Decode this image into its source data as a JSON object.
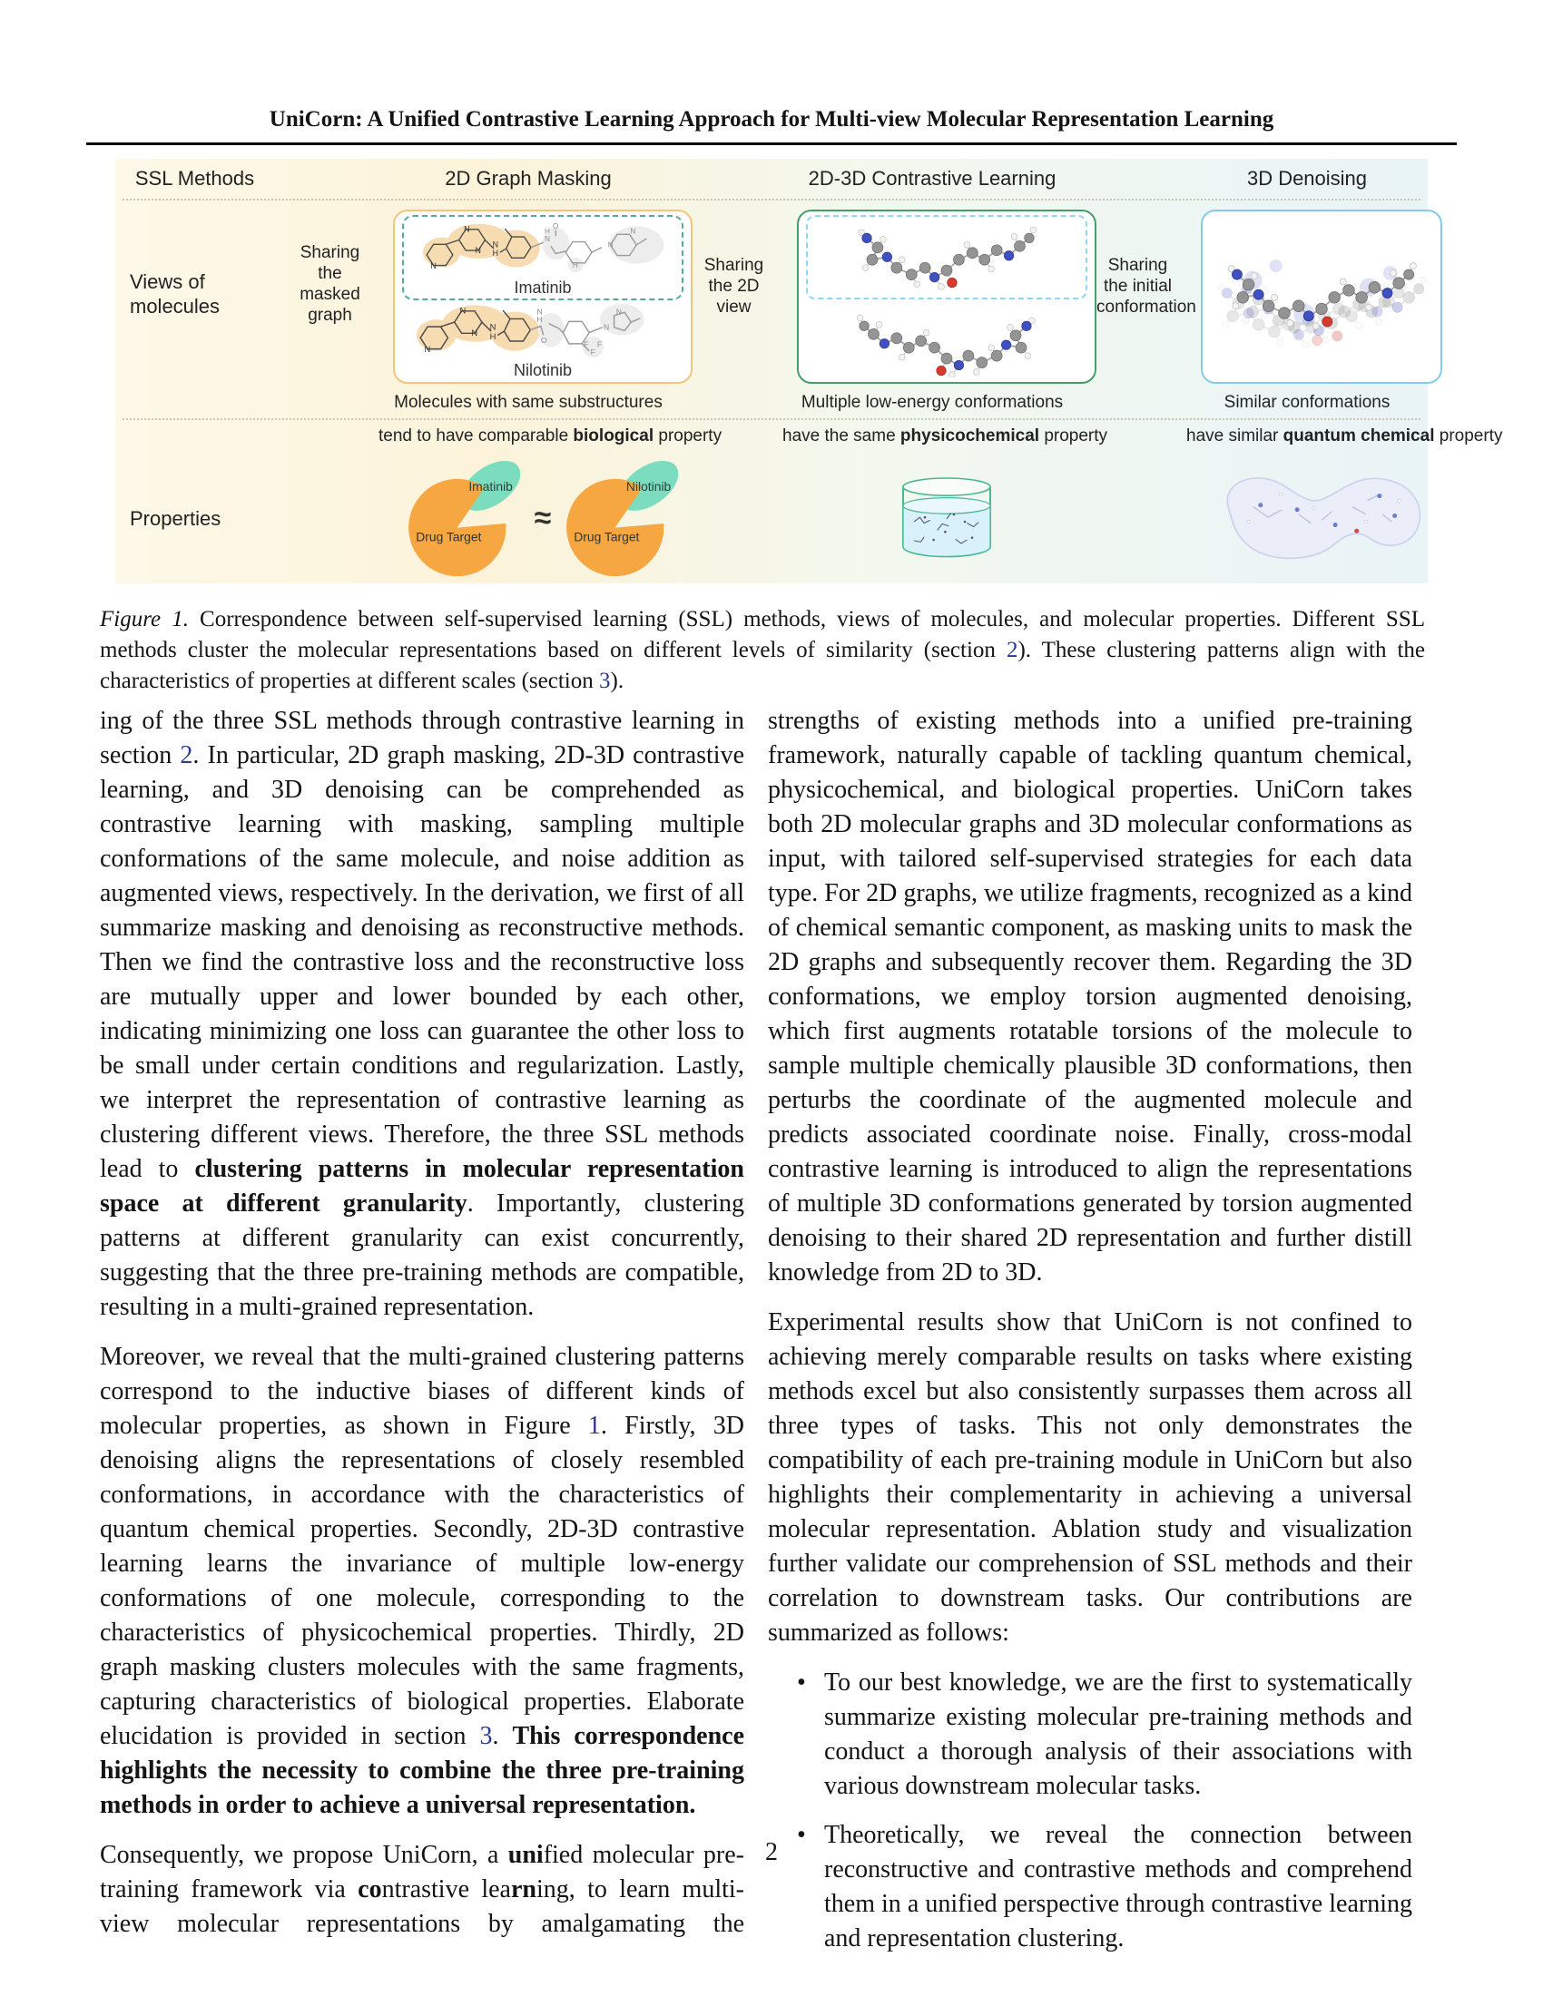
{
  "header": {
    "title": "UniCorn: A Unified Contrastive Learning Approach for Multi-view Molecular Representation Learning"
  },
  "figure": {
    "headers": {
      "methods": "SSL Methods",
      "masking": "2D Graph Masking",
      "contrastive": "2D-3D Contrastive Learning",
      "denoising": "3D Denoising"
    },
    "rows": {
      "views": "Views of molecules",
      "properties": "Properties"
    },
    "arrows": {
      "masked": "Sharing the masked graph",
      "view2d": "Sharing the 2D view",
      "init": "Sharing the initial conformation"
    },
    "molecules": {
      "imatinib": "Imatinib",
      "nilotinib": "Nilotinib"
    },
    "captions": {
      "col2": "Molecules with same substructures",
      "col3": "Multiple low-energy conformations",
      "col4": "Similar conformations"
    },
    "props": {
      "col2": [
        {
          "t": "tend to have comparable "
        },
        {
          "t": "biological",
          "s": "b"
        },
        {
          "t": " property"
        }
      ],
      "col3": [
        {
          "t": "have the same "
        },
        {
          "t": "physicochemical",
          "s": "b"
        },
        {
          "t": " property"
        }
      ],
      "col4": [
        {
          "t": "have similar "
        },
        {
          "t": "quantum chemical",
          "s": "b"
        },
        {
          "t": " property"
        }
      ]
    },
    "pac": {
      "target": "Drug Target",
      "approx": "≈"
    },
    "colors": {
      "masking_box": "#f2c579",
      "contrastive_box": "#43a06b",
      "denoising_box": "#85cbe8",
      "orange_arrow": "#f6b15c",
      "green_arrow": "#3aa169",
      "blue_arrow": "#7cc8e6",
      "pac_orange": "#f6a742",
      "petal_teal": "#7cdcbe",
      "link_blue": "#2b3990"
    }
  },
  "caption": [
    {
      "t": "Figure 1.",
      "s": "i"
    },
    {
      "t": "  Correspondence between self-supervised learning (SSL) methods, views of molecules, and molecular properties. Different SSL methods cluster the molecular representations based on different levels of similarity (section "
    },
    {
      "t": "2",
      "s": "link"
    },
    {
      "t": "). These clustering patterns align with the characteristics of properties at different scales (section "
    },
    {
      "t": "3",
      "s": "link"
    },
    {
      "t": ")."
    }
  ],
  "body": {
    "left": [
      [
        {
          "t": "ing of the three SSL methods through contrastive learning in section "
        },
        {
          "t": "2",
          "s": "link"
        },
        {
          "t": ". In particular, 2D graph masking, 2D-3D contrastive learning, and 3D denoising can be comprehended as contrastive learning with masking, sampling multiple conformations of the same molecule, and noise addition as augmented views, respectively. In the derivation, we first of all summarize masking and denoising as reconstructive methods.  Then we find the contrastive loss and the reconstructive loss are mutually upper and lower bounded by each other, indicating minimizing one loss can guarantee the other loss to be small under certain conditions and regularization. Lastly, we interpret the representation of contrastive learning as clustering different views. Therefore, the three SSL methods lead to "
        },
        {
          "t": "clustering patterns in molecular representation space at different granularity",
          "s": "b"
        },
        {
          "t": ". Importantly, clustering patterns at different granularity can exist concurrently, suggesting that the three pre-training methods are compatible, resulting in a multi-grained representation."
        }
      ],
      [
        {
          "t": "Moreover, we reveal that the multi-grained clustering patterns correspond to the inductive biases of different kinds of molecular properties, as shown in Figure "
        },
        {
          "t": "1",
          "s": "link"
        },
        {
          "t": ". Firstly, 3D denoising aligns the representations of closely resembled conformations, in accordance with the characteristics of quantum chemical properties. Secondly, 2D-3D contrastive learning learns the invariance of multiple low-energy conformations of one molecule, corresponding to the characteristics of physicochemical properties. Thirdly, 2D graph masking clusters molecules with the same fragments, capturing characteristics of biological properties.  Elaborate elucidation is provided in section "
        },
        {
          "t": "3",
          "s": "link"
        },
        {
          "t": ". "
        },
        {
          "t": "This correspondence highlights the necessity to combine the three pre-training methods in order to achieve a universal representation.",
          "s": "b"
        }
      ],
      [
        {
          "t": "Consequently, we propose UniCorn, a "
        },
        {
          "t": "uni",
          "s": "b"
        },
        {
          "t": "fied molecular pre-training framework via "
        },
        {
          "t": "co",
          "s": "b"
        },
        {
          "t": "ntrastive lea"
        },
        {
          "t": "rn",
          "s": "b"
        },
        {
          "t": "ing, to learn multi-view molecular representations by amalgamating the"
        }
      ]
    ],
    "right": [
      [
        {
          "t": "strengths of existing methods into a unified pre-training framework, naturally capable of tackling quantum chemical, physicochemical, and biological properties. UniCorn takes both 2D molecular graphs and 3D molecular conformations as input, with tailored self-supervised strategies for each data type. For 2D graphs, we utilize fragments, recognized as a kind of chemical semantic component, as masking units to mask the 2D graphs and subsequently recover them. Regarding the 3D conformations, we employ torsion augmented denoising, which first augments rotatable torsions of the molecule to sample multiple chemically plausible 3D conformations, then perturbs the coordinate of the augmented molecule and predicts associated coordinate noise. Finally, cross-modal contrastive learning is introduced to align the representations of multiple 3D conformations generated by torsion augmented denoising to their shared 2D representation and further distill knowledge from 2D to 3D."
        }
      ],
      [
        {
          "t": "Experimental results show that UniCorn is not confined to achieving merely comparable results on tasks where existing methods excel but also consistently surpasses them across all three types of tasks. This not only demonstrates the compatibility of each pre-training module in UniCorn but also highlights their complementarity in achieving a universal molecular representation. Ablation study and visualization further validate our comprehension of SSL methods and their correlation to downstream tasks. Our contributions are summarized as follows:"
        }
      ]
    ],
    "bullets": [
      [
        {
          "t": "To our best knowledge, we are the first to systematically summarize existing molecular pre-training methods and conduct a thorough analysis of their associations with various downstream molecular tasks."
        }
      ],
      [
        {
          "t": "Theoretically, we reveal the connection between reconstructive and contrastive methods and comprehend them in a unified perspective through contrastive learning and representation clustering."
        }
      ]
    ],
    "bullet_glyph": "•"
  },
  "footer": {
    "page_number": "2"
  }
}
